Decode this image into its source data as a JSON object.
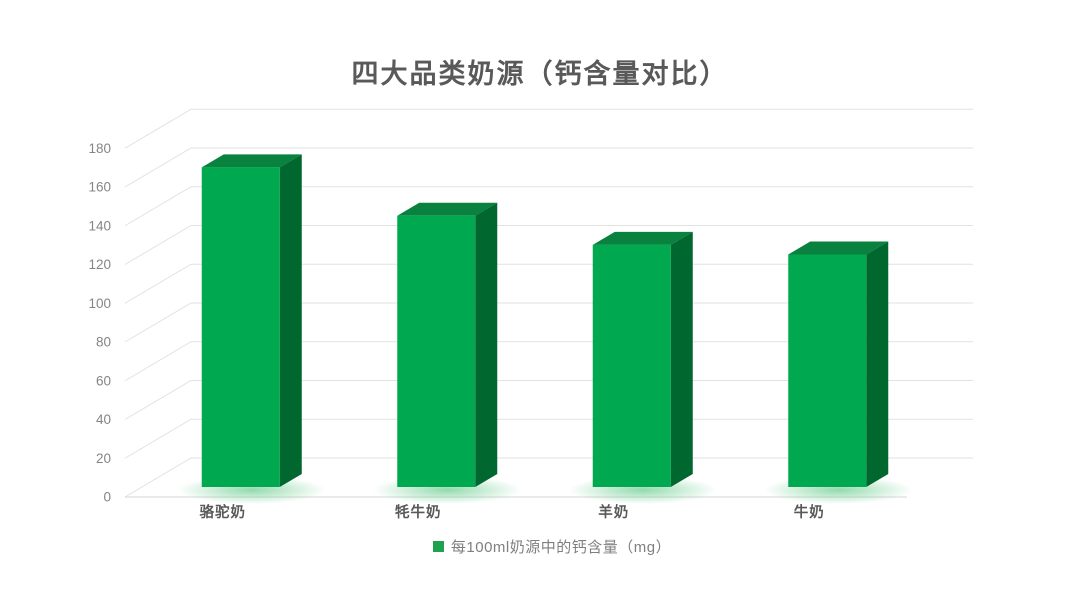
{
  "chart_data": {
    "type": "bar",
    "style": "3d-column",
    "title": "四大品类奶源（钙含量对比）",
    "categories": [
      "骆驼奶",
      "牦牛奶",
      "羊奶",
      "牛奶"
    ],
    "series": [
      {
        "name": "每100ml奶源中的钙含量（mg）",
        "values": [
          165,
          140,
          125,
          120
        ]
      }
    ],
    "xlabel": "",
    "ylabel": "",
    "ylim": [
      0,
      180
    ],
    "ytick_step": 20,
    "yticks": [
      0,
      20,
      40,
      60,
      80,
      100,
      120,
      140,
      160,
      180
    ],
    "grid": true,
    "legend_position": "bottom",
    "colors": {
      "bar_front": "#00A84F",
      "bar_top": "#08823E",
      "bar_side": "#00672F",
      "glow": "#7FD49E",
      "grid_line": "#E2E2E2",
      "axis_line": "#D6D6D6",
      "tick_label": "#858585",
      "category_label": "#595959",
      "title": "#595959",
      "legend_text": "#7F7F7F",
      "legend_marker": "#1EA24D",
      "background": "#FFFFFF"
    }
  }
}
